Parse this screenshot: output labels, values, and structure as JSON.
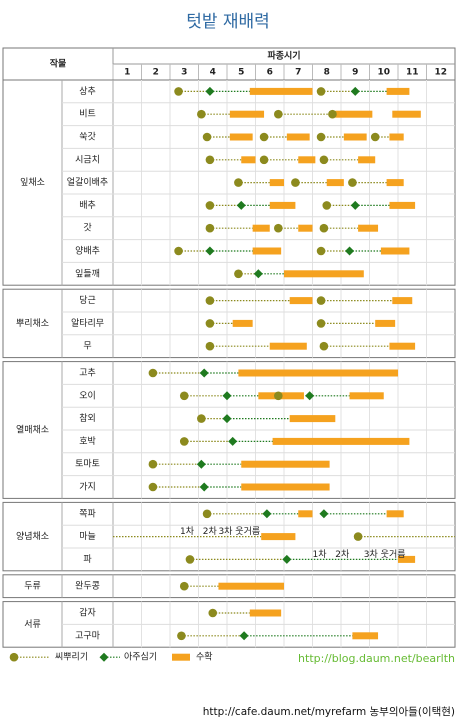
{
  "chart_data": {
    "type": "gantt",
    "title": "텃밭 재배력",
    "crop_header": "작물",
    "period_header": "파종시기",
    "xlim": [
      1,
      13
    ],
    "xticks": [
      1,
      2,
      3,
      4,
      5,
      6,
      7,
      8,
      9,
      10,
      11,
      12
    ],
    "colors": {
      "sow": "#8c8a1e",
      "plant": "#1f7a1f",
      "harvest": "#f5a21f"
    },
    "legend": {
      "sow": "씨뿌리기",
      "plant": "아주심기",
      "harvest": "수확"
    },
    "source_url": "http://blog.daum.net/bearlth",
    "footer": "http://cafe.daum.net/myrefarm 농부의아들(이택현)",
    "groups": [
      {
        "name": "잎채소",
        "crops": [
          {
            "name": "상추",
            "sow": [
              3.3,
              8.3
            ],
            "plant": [
              4.4,
              9.5
            ],
            "harvest": [
              [
                5.8,
                8.0
              ],
              [
                10.6,
                11.4
              ]
            ]
          },
          {
            "name": "비트",
            "sow": [
              4.1,
              6.8,
              8.7
            ],
            "plant": [],
            "harvest": [
              [
                5.1,
                6.3
              ],
              [
                8.8,
                10.1
              ],
              [
                10.8,
                11.8
              ]
            ]
          },
          {
            "name": "쑥갓",
            "sow": [
              4.3,
              6.3,
              8.3,
              10.2
            ],
            "plant": [],
            "harvest": [
              [
                5.1,
                5.9
              ],
              [
                7.1,
                7.9
              ],
              [
                9.1,
                9.9
              ],
              [
                10.7,
                11.2
              ]
            ]
          },
          {
            "name": "시금치",
            "sow": [
              4.4,
              6.3,
              8.4
            ],
            "plant": [],
            "harvest": [
              [
                5.5,
                6.0
              ],
              [
                7.5,
                8.1
              ],
              [
                9.6,
                10.2
              ]
            ]
          },
          {
            "name": "얼갈이배추",
            "sow": [
              5.4,
              7.4,
              9.4
            ],
            "plant": [],
            "harvest": [
              [
                6.5,
                7.0
              ],
              [
                8.5,
                9.1
              ],
              [
                10.6,
                11.2
              ]
            ]
          },
          {
            "name": "배추",
            "sow": [
              4.4,
              8.5
            ],
            "plant": [
              5.5,
              9.5
            ],
            "harvest": [
              [
                6.5,
                7.4
              ],
              [
                10.7,
                11.6
              ]
            ]
          },
          {
            "name": "갓",
            "sow": [
              4.4,
              6.8,
              8.4
            ],
            "plant": [],
            "harvest": [
              [
                5.9,
                6.5
              ],
              [
                7.5,
                8.0
              ],
              [
                9.6,
                10.3
              ]
            ]
          },
          {
            "name": "양배추",
            "sow": [
              3.3,
              8.3
            ],
            "plant": [
              4.4,
              9.3
            ],
            "harvest": [
              [
                5.9,
                6.9
              ],
              [
                10.4,
                11.4
              ]
            ]
          },
          {
            "name": "잎들깨",
            "sow": [
              5.4
            ],
            "plant": [
              6.1
            ],
            "harvest": [
              [
                7.0,
                9.8
              ]
            ]
          }
        ]
      },
      {
        "name": "뿌리채소",
        "crops": [
          {
            "name": "당근",
            "sow": [
              4.4,
              8.3
            ],
            "plant": [],
            "harvest": [
              [
                7.2,
                8.0
              ],
              [
                10.8,
                11.5
              ]
            ]
          },
          {
            "name": "알타리무",
            "sow": [
              4.4,
              8.3
            ],
            "plant": [],
            "harvest": [
              [
                5.2,
                5.9
              ],
              [
                10.2,
                10.9
              ]
            ]
          },
          {
            "name": "무",
            "sow": [
              4.4,
              8.4
            ],
            "plant": [],
            "harvest": [
              [
                6.5,
                7.8
              ],
              [
                10.7,
                11.6
              ]
            ]
          }
        ]
      },
      {
        "name": "열매채소",
        "crops": [
          {
            "name": "고추",
            "sow": [
              2.4
            ],
            "plant": [
              4.2
            ],
            "harvest": [
              [
                5.4,
                11.0
              ]
            ]
          },
          {
            "name": "오이",
            "sow": [
              3.5,
              6.8
            ],
            "plant": [
              5.0,
              7.9
            ],
            "harvest": [
              [
                6.1,
                7.7
              ],
              [
                9.3,
                10.5
              ]
            ]
          },
          {
            "name": "참외",
            "sow": [
              4.1
            ],
            "plant": [
              5.0
            ],
            "harvest": [
              [
                7.2,
                8.8
              ]
            ]
          },
          {
            "name": "호박",
            "sow": [
              3.5
            ],
            "plant": [
              5.2
            ],
            "harvest": [
              [
                6.6,
                11.4
              ]
            ]
          },
          {
            "name": "토마토",
            "sow": [
              2.4
            ],
            "plant": [
              4.1
            ],
            "harvest": [
              [
                5.5,
                8.6
              ]
            ]
          },
          {
            "name": "가지",
            "sow": [
              2.4
            ],
            "plant": [
              4.2
            ],
            "harvest": [
              [
                5.5,
                8.6
              ]
            ]
          }
        ]
      },
      {
        "name": "양념채소",
        "crops": [
          {
            "name": "쪽파",
            "sow": [
              4.3
            ],
            "plant": [
              6.4,
              8.4
            ],
            "harvest": [
              [
                7.5,
                8.0
              ],
              [
                10.6,
                11.2
              ]
            ]
          },
          {
            "name": "마늘",
            "sow": [
              9.6
            ],
            "plant": [],
            "harvest": [
              [
                6.2,
                7.4
              ]
            ],
            "lines": [
              [
                1.0,
                6.2
              ]
            ],
            "notes": [
              {
                "text": "1차",
                "at": 3.35
              },
              {
                "text": "2차",
                "at": 4.15
              },
              {
                "text": "3차 웃거름",
                "at": 4.7
              }
            ]
          },
          {
            "name": "파",
            "sow": [
              3.7
            ],
            "plant": [
              7.1
            ],
            "harvest": [
              [
                11.0,
                11.6
              ]
            ],
            "notes": [
              {
                "text": "1차",
                "at": 8.0
              },
              {
                "text": "2차",
                "at": 8.8
              },
              {
                "text": "3차 웃거름",
                "at": 9.8
              }
            ]
          }
        ]
      },
      {
        "name": "두류",
        "crops": [
          {
            "name": "완두콩",
            "sow": [
              3.5
            ],
            "plant": [],
            "harvest": [
              [
                4.7,
                7.0
              ]
            ]
          }
        ]
      },
      {
        "name": "서류",
        "crops": [
          {
            "name": "감자",
            "sow": [
              4.5
            ],
            "plant": [],
            "harvest": [
              [
                5.8,
                6.9
              ]
            ]
          },
          {
            "name": "고구마",
            "sow": [
              3.4
            ],
            "plant": [
              5.6
            ],
            "harvest": [
              [
                9.4,
                10.3
              ]
            ]
          }
        ]
      }
    ]
  }
}
